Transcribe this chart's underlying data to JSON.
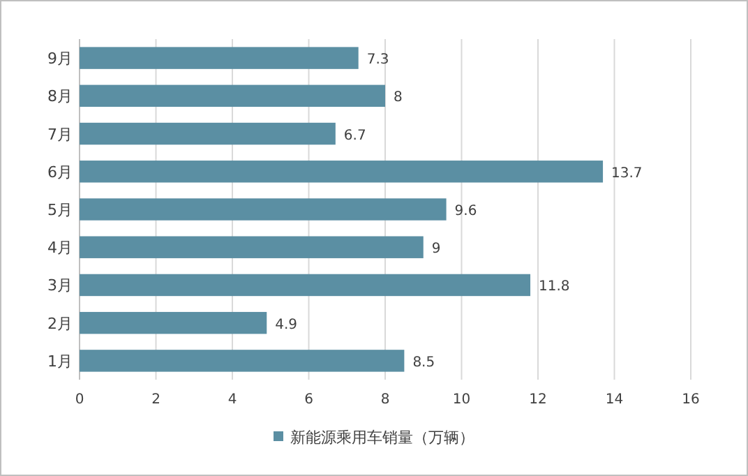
{
  "chart_data": {
    "type": "bar",
    "orientation": "horizontal",
    "categories": [
      "9月",
      "8月",
      "7月",
      "6月",
      "5月",
      "4月",
      "3月",
      "2月",
      "1月"
    ],
    "series": [
      {
        "name": "新能源乘用车销量（万辆）",
        "color": "#5b8fa3",
        "values": [
          7.3,
          8,
          6.7,
          13.7,
          9.6,
          9,
          11.8,
          4.9,
          8.5
        ]
      }
    ],
    "xlim": [
      0,
      16
    ],
    "xticks": [
      0,
      2,
      4,
      6,
      8,
      10,
      12,
      14,
      16
    ],
    "grid": "x",
    "data_labels": true,
    "legend": "bottom"
  }
}
